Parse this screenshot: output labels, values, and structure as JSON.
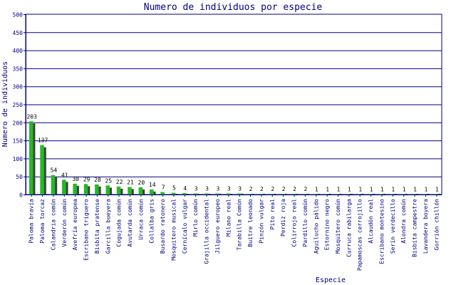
{
  "chart_data": {
    "type": "bar",
    "title": "Numero de individuos por especie",
    "xlabel": "Especie",
    "ylabel": "Numero de individuos",
    "ylim": [
      0,
      500
    ],
    "yticks": [
      0,
      50,
      100,
      150,
      200,
      250,
      300,
      350,
      400,
      450,
      500
    ],
    "grid": true,
    "bar_color": "#22bb22",
    "shadow_color": "#404040",
    "axis_color": "#000080",
    "categories": [
      "Paloma bravía",
      "Paloma torcaz",
      "Calandria común",
      "Verderón común",
      "Avefría europea",
      "Escribano triguero",
      "Bisbita pratense",
      "Garcilla bueyera",
      "Cogujada común",
      "Avutarda común",
      "Urraca común",
      "Collalba gris",
      "Busardo ratonero",
      "Mosquitero musical",
      "Cernícalo vulgar",
      "Mirlo común",
      "Grajilla occidental",
      "Jilguero europeo",
      "Milano real",
      "Tarabilla Común",
      "Buitre leonado",
      "Pinzón vulgar",
      "Pito real",
      "Perdiz roja",
      "Colirrojo real",
      "Pardillo común",
      "Aguilucho pálido",
      "Estornino negro",
      "Mosquitero común",
      "Curruca rabilarga",
      "Papamoscas cerrojillo",
      "Alcaudón real",
      "Escribano montesino",
      "Serín verdecillo",
      "Alondra común",
      "Bisbita campestre",
      "Lavandera boyera",
      "Gorrión chillón"
    ],
    "values": [
      203,
      137,
      54,
      41,
      30,
      29,
      28,
      25,
      22,
      21,
      20,
      14,
      7,
      5,
      4,
      3,
      3,
      3,
      3,
      3,
      2,
      2,
      2,
      2,
      2,
      2,
      1,
      1,
      1,
      1,
      1,
      1,
      1,
      1,
      1,
      1,
      1,
      1
    ]
  }
}
